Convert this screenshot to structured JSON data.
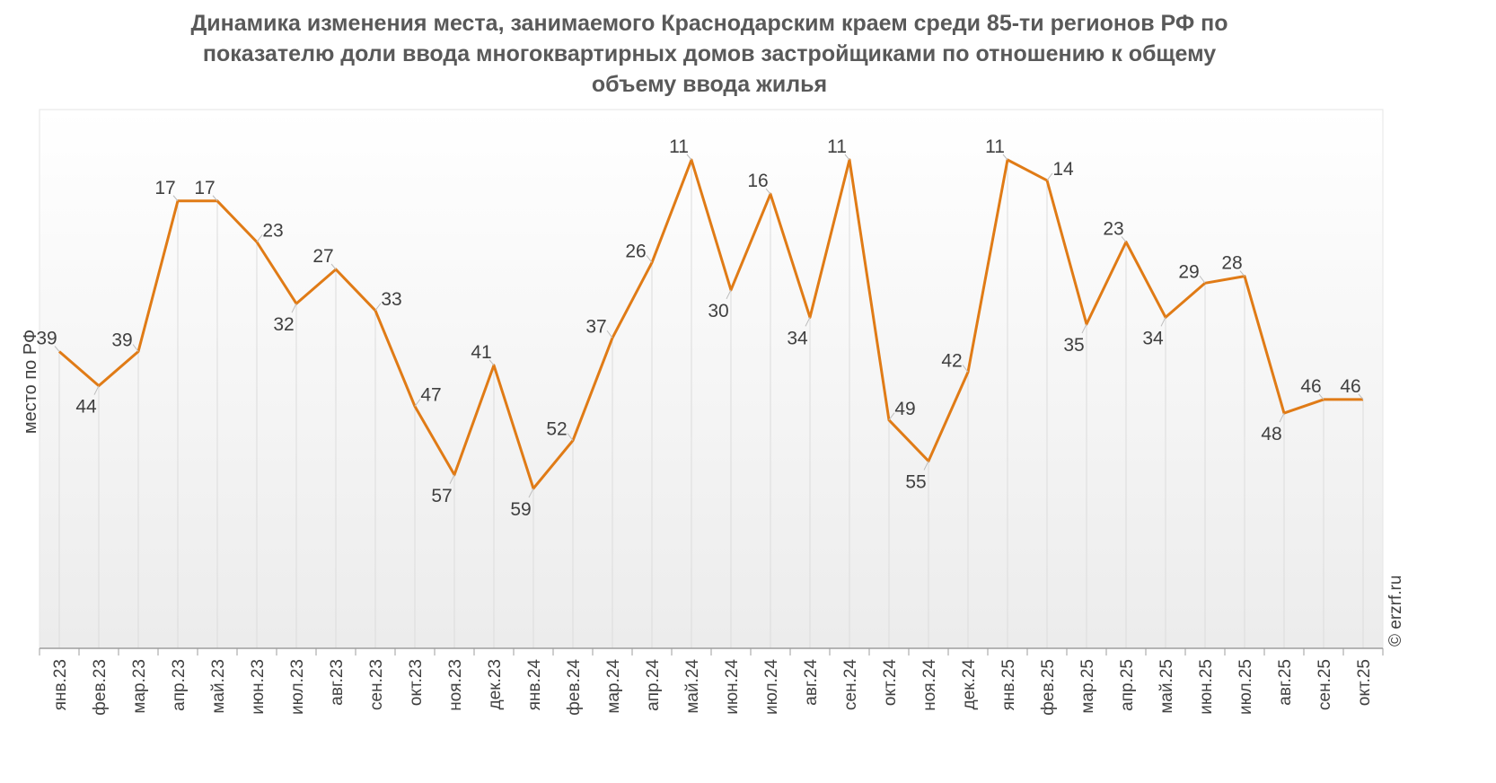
{
  "chart_data": {
    "type": "line",
    "title_lines": [
      "Динамика изменения места, занимаемого Краснодарским краем среди 85-ти регионов РФ по",
      "показателю доли ввода многоквартирных домов застройщиками по отношению к общему",
      "объему ввода жилья"
    ],
    "ylabel": "место по РФ",
    "categories": [
      "янв.23",
      "фев.23",
      "мар.23",
      "апр.23",
      "май.23",
      "июн.23",
      "июл.23",
      "авг.23",
      "сен.23",
      "окт.23",
      "ноя.23",
      "дек.23",
      "янв.24",
      "фев.24",
      "мар.24",
      "апр.24",
      "май.24",
      "июн.24",
      "июл.24",
      "авг.24",
      "сен.24",
      "окт.24",
      "ноя.24",
      "дек.24",
      "янв.25",
      "фев.25",
      "мар.25",
      "апр.25",
      "май.25",
      "июн.25",
      "июл.25",
      "авг.25",
      "сен.25",
      "окт.25"
    ],
    "values": [
      39,
      44,
      39,
      17,
      17,
      23,
      32,
      27,
      33,
      47,
      57,
      41,
      59,
      52,
      37,
      26,
      11,
      30,
      16,
      34,
      11,
      49,
      55,
      42,
      11,
      14,
      35,
      23,
      34,
      29,
      28,
      48,
      46,
      46
    ],
    "y_axis_inverted": true,
    "ylim": [
      5,
      65
    ],
    "y_tick_labels_shown": false,
    "grid": "vertical",
    "series_color": "#E07B16"
  },
  "credit": "© erzrf.ru"
}
